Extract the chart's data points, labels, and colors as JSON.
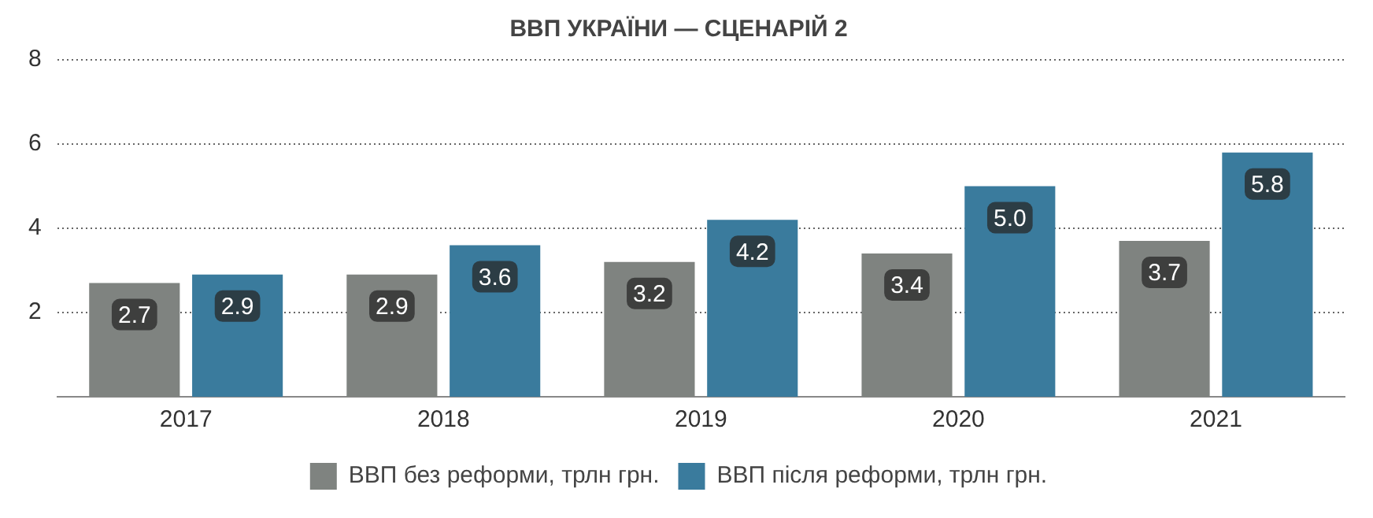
{
  "chart_data": {
    "type": "bar",
    "title": "ВВП УКРАЇНИ — СЦЕНАРІЙ 2",
    "categories": [
      "2017",
      "2018",
      "2019",
      "2020",
      "2021"
    ],
    "series": [
      {
        "name": "ВВП без реформи, трлн грн.",
        "color": "#7f8380",
        "values": [
          2.7,
          2.9,
          3.2,
          3.4,
          3.7
        ],
        "value_labels": [
          "2.7",
          "2.9",
          "3.2",
          "3.4",
          "3.7"
        ]
      },
      {
        "name": "ВВП після реформи, трлн грн.",
        "color": "#3a7b9d",
        "values": [
          2.9,
          3.6,
          4.2,
          5.0,
          5.8
        ],
        "value_labels": [
          "2.9",
          "3.6",
          "4.2",
          "5.0",
          "5.8"
        ]
      }
    ],
    "ylim": [
      0,
      8
    ],
    "yticks": [
      2,
      4,
      6,
      8
    ],
    "grid": "y",
    "legend": "bottom"
  }
}
